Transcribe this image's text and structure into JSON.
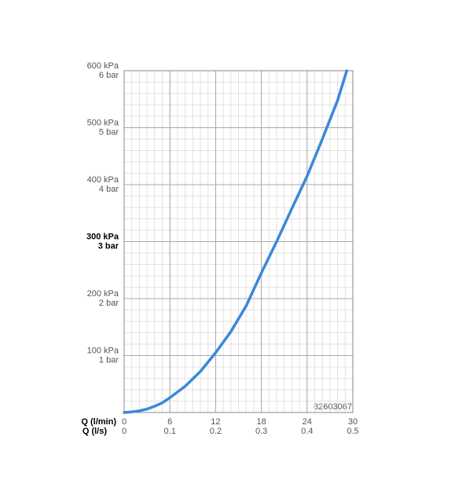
{
  "chart_data": {
    "type": "line",
    "x_labels": [
      "Q (l/min)",
      "Q (l/s)"
    ],
    "annotation": "82603067",
    "x": [
      0,
      1,
      2,
      3,
      4,
      5,
      6,
      8,
      10,
      12,
      14,
      16,
      18,
      20,
      22,
      24,
      26,
      28,
      29.2
    ],
    "series": [
      {
        "color": "#3b88d8",
        "values": [
          0,
          1,
          3,
          6,
          11,
          17,
          26,
          46,
          72,
          105,
          142,
          187,
          245,
          300,
          358,
          415,
          480,
          548,
          600
        ]
      }
    ],
    "xlim": [
      0,
      30
    ],
    "xticks": [
      0,
      6,
      12,
      18,
      24,
      30
    ],
    "x2lim": [
      0,
      0.5
    ],
    "x2ticks": [
      0,
      0.1,
      0.2,
      0.3,
      0.4,
      0.5
    ],
    "ylim": [
      0,
      600
    ],
    "yticks": [
      {
        "value": 100,
        "label": "100 kPa"
      },
      {
        "value": 200,
        "label": "200 kPa"
      },
      {
        "value": 300,
        "label": "300 kPa"
      },
      {
        "value": 400,
        "label": "400 kPa"
      },
      {
        "value": 500,
        "label": "500 kPa"
      },
      {
        "value": 600,
        "label": "600 kPa"
      }
    ],
    "y2lim": [
      0,
      6
    ],
    "y2ticks": [
      {
        "value": 1,
        "label": "1 bar"
      },
      {
        "value": 2,
        "label": "2 bar"
      },
      {
        "value": 3,
        "label": "3 bar"
      },
      {
        "value": 4,
        "label": "4 bar"
      },
      {
        "value": 5,
        "label": "5 bar"
      },
      {
        "value": 6,
        "label": "6 bar"
      }
    ],
    "bold_ytick": 300,
    "grid": true
  }
}
